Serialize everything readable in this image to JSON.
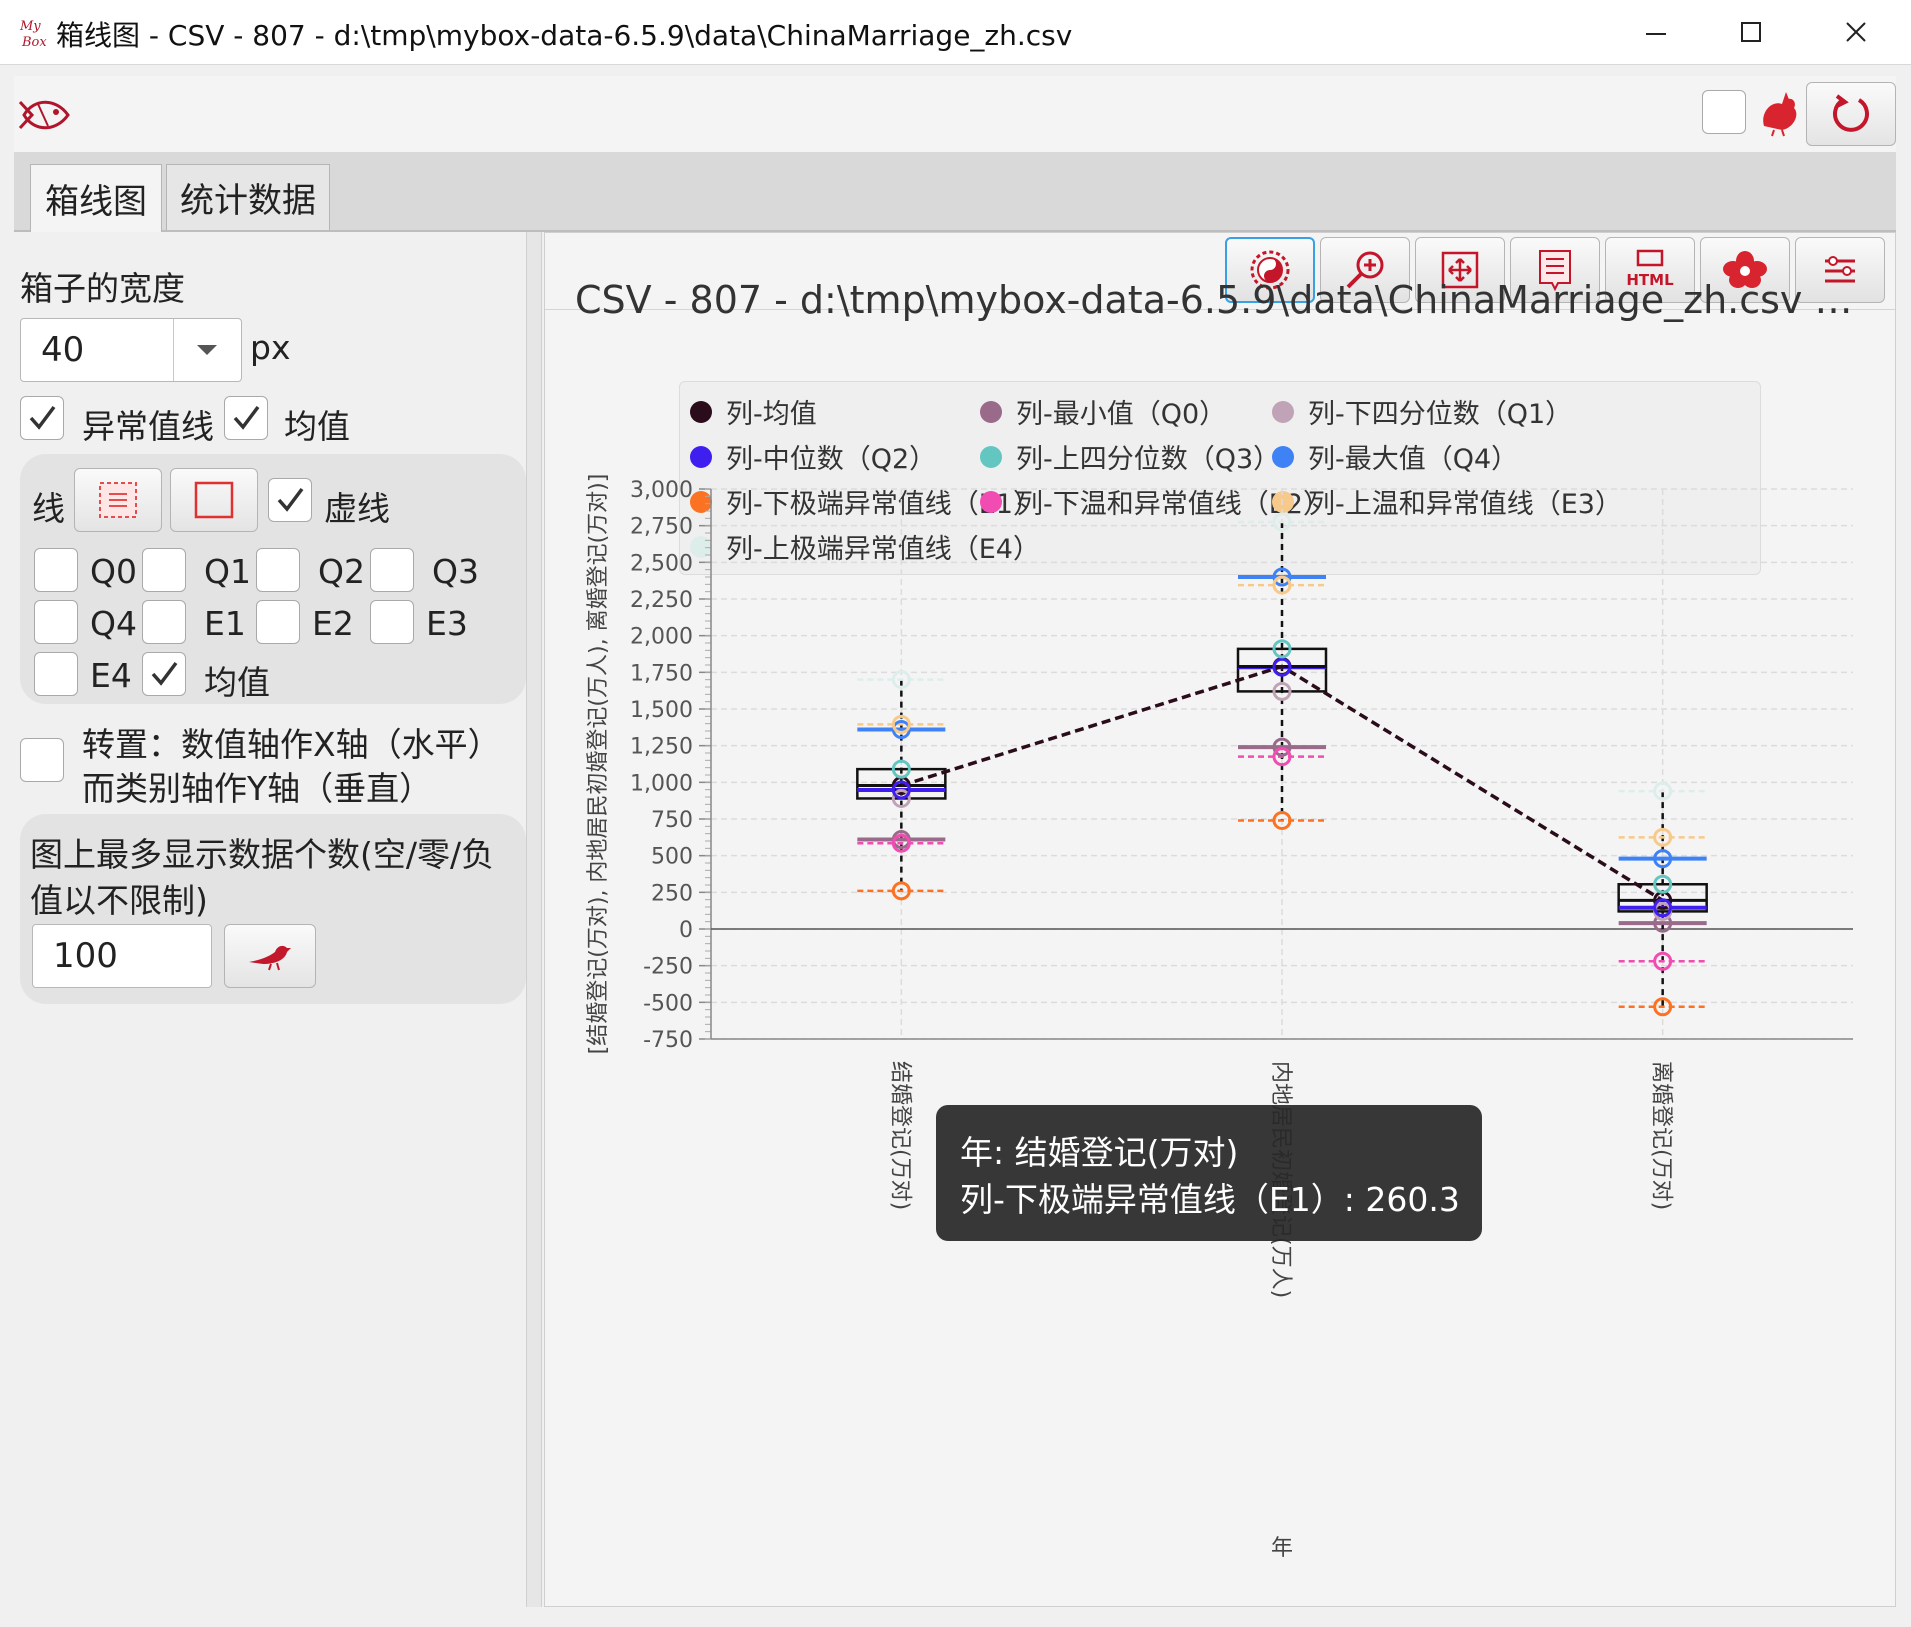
{
  "window": {
    "title": "箱线图 - CSV - 807 - d:\\tmp\\mybox-data-6.5.9\\data\\ChinaMarriage_zh.csv",
    "app_icon": "mybox-logo-icon",
    "minimize_icon": "minimize-icon",
    "maximize_icon": "maximize-icon",
    "close_icon": "close-icon"
  },
  "topbar": {
    "left_icon": "fish-logo-icon",
    "right_icons": [
      "checkbox",
      "rooster-icon",
      "refresh-icon"
    ]
  },
  "tabs": [
    {
      "label": "箱线图",
      "active": true
    },
    {
      "label": "统计数据",
      "active": false
    }
  ],
  "settings": {
    "box_width_label": "箱子的宽度",
    "box_width_value": "40",
    "box_width_unit": "px",
    "outlier_lines_label": "异常值线",
    "outlier_lines_checked": true,
    "mean_label": "均值",
    "mean_checked": true,
    "line_group": {
      "label": "线",
      "dashed_label": "虚线",
      "dashed_checked": true
    },
    "toggles": [
      {
        "label": "Q0",
        "checked": false
      },
      {
        "label": "Q1",
        "checked": false
      },
      {
        "label": "Q2",
        "checked": false
      },
      {
        "label": "Q3",
        "checked": false
      },
      {
        "label": "Q4",
        "checked": false
      },
      {
        "label": "E1",
        "checked": false
      },
      {
        "label": "E2",
        "checked": false
      },
      {
        "label": "E3",
        "checked": false
      },
      {
        "label": "E4",
        "checked": false
      },
      {
        "label": "均值",
        "checked": true
      }
    ],
    "transpose_line1": "转置：数值轴作X轴（水平）",
    "transpose_line2": "而类别轴作Y轴（垂直）",
    "transpose_checked": false,
    "max_data_line1": "图上最多显示数据个数(空/零/负",
    "max_data_line2": "值以不限制)",
    "max_data_value": "100",
    "go_icon": "bird-go-icon"
  },
  "toolbar": {
    "icons": [
      "taiji-icon",
      "zoom-in-icon",
      "fit-window-icon",
      "paper-icon",
      "html-icon",
      "flower-icon",
      "settings-menu-icon"
    ]
  },
  "tooltip": {
    "line1": "年: 结婚登记(万对)",
    "line2": "列-下极端异常值线（E1）: 260.3"
  },
  "chart_data": {
    "type": "box",
    "title": "CSV - 807 - d:\\tmp\\mybox-data-6.5.9\\data\\ChinaMarriage_zh.csv - 箱...",
    "xlabel": "年",
    "ylabel": "[结婚登记(万对), 内地居民初婚登记(万人), 离婚登记(万对)]",
    "ylim": [
      -750,
      3000
    ],
    "yticks": [
      3000,
      2750,
      2500,
      2250,
      2000,
      1750,
      1500,
      1250,
      1000,
      750,
      500,
      250,
      0,
      -250,
      -500,
      -750
    ],
    "ytick_labels": [
      "3,000",
      "2,750",
      "2,500",
      "2,250",
      "2,000",
      "1,750",
      "1,500",
      "1,250",
      "1,000",
      "750",
      "500",
      "250",
      "0",
      "-250",
      "-500",
      "-750"
    ],
    "categories": [
      "结婚登记(万对)",
      "内地居民初婚登记(万人)",
      "离婚登记(万对)"
    ],
    "grid": true,
    "legend_position": "top",
    "series": [
      {
        "name": "列-均值",
        "color": "#2a0c1a",
        "values": [
          978,
          1790,
          195
        ]
      },
      {
        "name": "列-最小值（Q0）",
        "color": "#996a89",
        "values": [
          610,
          1240,
          40
        ]
      },
      {
        "name": "列-下四分位数（Q1）",
        "color": "#c0a3b6",
        "values": [
          890,
          1620,
          120
        ]
      },
      {
        "name": "列-中位数（Q2）",
        "color": "#3f1ff0",
        "values": [
          948,
          1785,
          145
        ]
      },
      {
        "name": "列-上四分位数（Q3）",
        "color": "#64c6c0",
        "values": [
          1090,
          1910,
          305
        ]
      },
      {
        "name": "列-最大值（Q4）",
        "color": "#3e82f5",
        "values": [
          1360,
          2400,
          480
        ]
      },
      {
        "name": "列-下极端异常值线（E1）",
        "color": "#fb7223",
        "values": [
          260.3,
          740,
          -530
        ]
      },
      {
        "name": "列-下温和异常值线（E2）",
        "color": "#f04cb2",
        "values": [
          585,
          1175,
          -220
        ]
      },
      {
        "name": "列-上温和异常值线（E3）",
        "color": "#f7c98b",
        "values": [
          1395,
          2345,
          625
        ]
      },
      {
        "name": "列-上极端异常值线（E4）",
        "color": "#ddeeea",
        "values": [
          1700,
          2775,
          940
        ]
      }
    ]
  }
}
